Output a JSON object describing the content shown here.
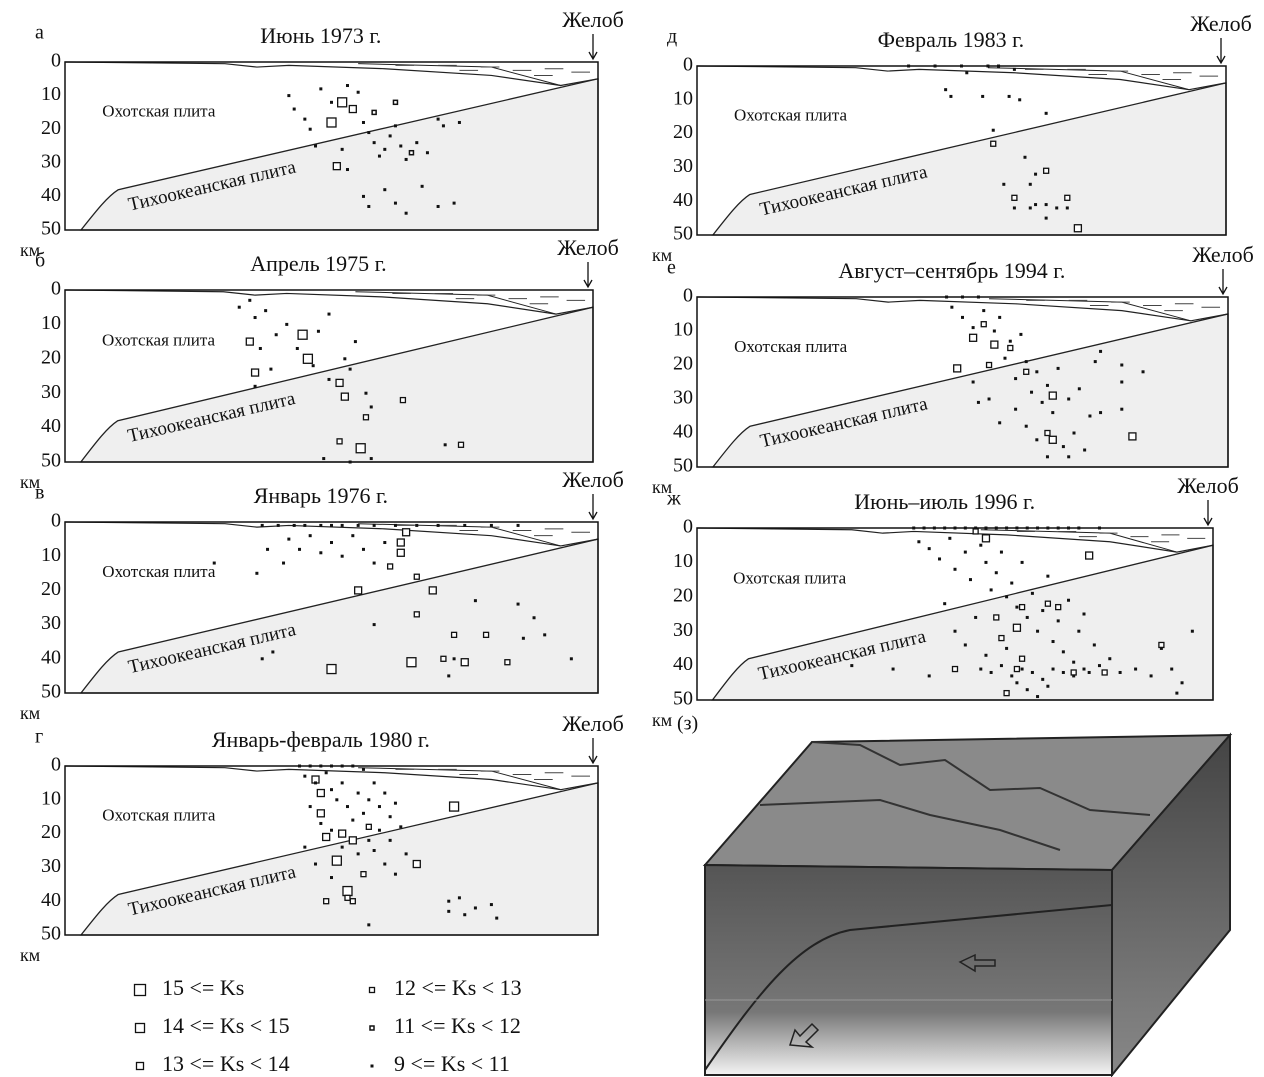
{
  "chart_data": [
    {
      "type": "scatter",
      "label": "а",
      "title": "Июнь 1973 г.",
      "annotation": "Желоб",
      "upper_plate": "Охотская плита",
      "lower_plate": "Тихоокеанская плита",
      "y_unit": "км",
      "xlim": [
        0,
        100
      ],
      "ylim": [
        0,
        50
      ],
      "y_inverted": true,
      "yticks": [
        0,
        10,
        20,
        30,
        40,
        50
      ],
      "series": [
        {
          "x": [],
          "y": []
        },
        {
          "x": [
            52,
            50
          ],
          "y": [
            12,
            18
          ]
        },
        {
          "x": [
            54,
            51
          ],
          "y": [
            14,
            31
          ]
        },
        {
          "x": [],
          "y": []
        },
        {
          "x": [
            58,
            62,
            65
          ],
          "y": [
            15,
            12,
            27
          ]
        },
        {
          "x": [
            42,
            43,
            45,
            46,
            48,
            50,
            53,
            55,
            56,
            57,
            58,
            60,
            61,
            62,
            63,
            59,
            64,
            66,
            68,
            70,
            71,
            47,
            52,
            53,
            56,
            57,
            60,
            62,
            64,
            67,
            70,
            73,
            74
          ],
          "y": [
            10,
            14,
            17,
            20,
            8,
            12,
            7,
            9,
            18,
            21,
            24,
            26,
            22,
            19,
            25,
            28,
            29,
            24,
            27,
            17,
            19,
            25,
            26,
            32,
            40,
            43,
            38,
            42,
            45,
            37,
            43,
            42,
            18
          ]
        }
      ]
    },
    {
      "type": "scatter",
      "label": "б",
      "title": "Апрель 1975 г.",
      "annotation": "Желоб",
      "upper_plate": "Охотская плита",
      "lower_plate": "Тихоокеанская плита",
      "y_unit": "км",
      "xlim": [
        0,
        100
      ],
      "ylim": [
        0,
        50
      ],
      "y_inverted": true,
      "yticks": [
        0,
        10,
        20,
        30,
        40,
        50
      ],
      "series": [
        {
          "x": [],
          "y": []
        },
        {
          "x": [
            45,
            46,
            56
          ],
          "y": [
            13,
            20,
            46
          ]
        },
        {
          "x": [
            35,
            52,
            53,
            36
          ],
          "y": [
            15,
            27,
            31,
            24
          ]
        },
        {
          "x": [
            52,
            57,
            64,
            75
          ],
          "y": [
            44,
            37,
            32,
            45
          ]
        },
        {
          "x": [],
          "y": []
        },
        {
          "x": [
            33,
            35,
            36,
            38,
            37,
            40,
            42,
            44,
            47,
            48,
            50,
            50,
            53,
            54,
            55,
            57,
            58,
            36,
            39,
            54,
            72,
            49,
            58
          ],
          "y": [
            5,
            3,
            8,
            6,
            17,
            13,
            10,
            17,
            22,
            12,
            7,
            26,
            20,
            23,
            15,
            30,
            34,
            28,
            23,
            50,
            45,
            49,
            49
          ]
        }
      ]
    },
    {
      "type": "scatter",
      "label": "в",
      "title": "Январь 1976 г.",
      "annotation": "Желоб",
      "upper_plate": "Охотская плита",
      "lower_plate": "Тихоокеанская плита",
      "y_unit": "км",
      "xlim": [
        0,
        100
      ],
      "ylim": [
        0,
        50
      ],
      "y_inverted": true,
      "yticks": [
        0,
        10,
        20,
        30,
        40,
        50
      ],
      "series": [
        {
          "x": [],
          "y": []
        },
        {
          "x": [
            50,
            65
          ],
          "y": [
            43,
            41
          ]
        },
        {
          "x": [
            63,
            64,
            63,
            55,
            69,
            75
          ],
          "y": [
            6,
            3,
            9,
            20,
            20,
            41
          ]
        },
        {
          "x": [
            61,
            66,
            73,
            79,
            83,
            66,
            71
          ],
          "y": [
            13,
            16,
            33,
            33,
            41,
            27,
            40
          ]
        },
        {
          "x": [],
          "y": []
        },
        {
          "x": [
            37,
            40,
            43,
            45,
            48,
            50,
            52,
            55,
            58,
            62,
            66,
            70,
            75,
            80,
            85,
            42,
            44,
            46,
            48,
            50,
            52,
            54,
            56,
            58,
            60,
            38,
            41,
            36,
            28,
            37,
            39,
            73,
            72,
            77,
            86,
            85,
            88,
            90,
            95,
            58
          ],
          "y": [
            1,
            1,
            1,
            1,
            1,
            1,
            1,
            1,
            1,
            1,
            1,
            1,
            1,
            1,
            1,
            5,
            8,
            4,
            9,
            6,
            10,
            4,
            8,
            12,
            6,
            8,
            12,
            15,
            12,
            40,
            38,
            40,
            45,
            23,
            34,
            24,
            28,
            33,
            40,
            30
          ]
        }
      ]
    },
    {
      "type": "scatter",
      "label": "г",
      "title": "Январь-февраль 1980 г.",
      "annotation": "Желоб",
      "upper_plate": "Охотская плита",
      "lower_plate": "Тихоокеанская плита",
      "y_unit": "км",
      "xlim": [
        0,
        100
      ],
      "ylim": [
        0,
        50
      ],
      "y_inverted": true,
      "yticks": [
        0,
        10,
        20,
        30,
        40,
        50
      ],
      "series": [
        {
          "x": [],
          "y": []
        },
        {
          "x": [
            53,
            51,
            73
          ],
          "y": [
            37,
            28,
            12
          ]
        },
        {
          "x": [
            47,
            48,
            52,
            54,
            49,
            48,
            66
          ],
          "y": [
            4,
            14,
            20,
            22,
            21,
            8,
            29
          ]
        },
        {
          "x": [
            49,
            54,
            56,
            53,
            57
          ],
          "y": [
            40,
            40,
            32,
            39,
            18
          ]
        },
        {
          "x": [],
          "y": []
        },
        {
          "x": [
            44,
            46,
            48,
            50,
            52,
            54,
            56,
            45,
            47,
            49,
            50,
            51,
            52,
            53,
            55,
            56,
            57,
            58,
            59,
            60,
            61,
            62,
            63,
            48,
            50,
            52,
            54,
            55,
            57,
            58,
            59,
            60,
            61,
            62,
            64,
            46,
            45,
            47,
            50,
            57,
            72,
            74,
            75,
            77,
            80,
            81,
            72
          ],
          "y": [
            0,
            0,
            0,
            0,
            0,
            0,
            1,
            3,
            5,
            2,
            7,
            10,
            5,
            12,
            8,
            14,
            10,
            5,
            12,
            8,
            15,
            11,
            18,
            17,
            19,
            24,
            16,
            26,
            22,
            25,
            19,
            29,
            22,
            32,
            26,
            12,
            24,
            29,
            33,
            47,
            40,
            39,
            44,
            42,
            41,
            45,
            43
          ]
        }
      ]
    },
    {
      "type": "scatter",
      "label": "д",
      "title": "Февраль 1983 г.",
      "annotation": "Желоб",
      "upper_plate": "Охотская плита",
      "lower_plate": "Тихоокеанская плита",
      "y_unit": "км",
      "xlim": [
        0,
        100
      ],
      "ylim": [
        0,
        50
      ],
      "y_inverted": true,
      "yticks": [
        0,
        10,
        20,
        30,
        40,
        50
      ],
      "series": [
        {
          "x": [],
          "y": []
        },
        {
          "x": [],
          "y": []
        },
        {
          "x": [
            72
          ],
          "y": [
            48
          ]
        },
        {
          "x": [
            66,
            60,
            70,
            56
          ],
          "y": [
            31,
            39,
            39,
            23
          ]
        },
        {
          "x": [],
          "y": []
        },
        {
          "x": [
            40,
            45,
            50,
            55,
            57,
            60,
            47,
            48,
            51,
            54,
            59,
            61,
            66,
            64,
            63,
            58,
            60,
            63,
            64,
            66,
            68,
            70,
            66,
            56,
            62
          ],
          "y": [
            0,
            0,
            0,
            0,
            0,
            1,
            7,
            9,
            2,
            9,
            9,
            10,
            14,
            32,
            35,
            35,
            42,
            42,
            41,
            41,
            42,
            42,
            45,
            19,
            27
          ]
        }
      ]
    },
    {
      "type": "scatter",
      "label": "е",
      "title": "Август–сентябрь 1994 г.",
      "annotation": "Желоб",
      "upper_plate": "Охотская плита",
      "lower_plate": "Тихоокеанская плита",
      "y_unit": "км",
      "xlim": [
        0,
        100
      ],
      "ylim": [
        0,
        50
      ],
      "y_inverted": true,
      "yticks": [
        0,
        10,
        20,
        30,
        40,
        50
      ],
      "series": [
        {
          "x": [],
          "y": []
        },
        {
          "x": [],
          "y": []
        },
        {
          "x": [
            49,
            52,
            56,
            67,
            67,
            82
          ],
          "y": [
            21,
            12,
            14,
            29,
            42,
            41
          ]
        },
        {
          "x": [
            55,
            59,
            62,
            54,
            66
          ],
          "y": [
            20,
            15,
            22,
            8,
            40
          ]
        },
        {
          "x": [],
          "y": []
        },
        {
          "x": [
            47,
            50,
            53,
            48,
            50,
            52,
            54,
            56,
            57,
            58,
            59,
            60,
            61,
            62,
            63,
            64,
            65,
            66,
            67,
            68,
            70,
            72,
            74,
            75,
            76,
            69,
            70,
            71,
            73,
            60,
            55,
            57,
            62,
            52,
            53,
            80,
            80,
            80,
            76,
            84,
            64,
            66
          ],
          "y": [
            0,
            0,
            0,
            3,
            6,
            9,
            4,
            10,
            6,
            18,
            13,
            24,
            11,
            19,
            28,
            22,
            31,
            26,
            34,
            21,
            30,
            27,
            35,
            19,
            34,
            44,
            47,
            40,
            45,
            33,
            30,
            37,
            38,
            25,
            31,
            20,
            25,
            33,
            16,
            22,
            42,
            47
          ]
        }
      ]
    },
    {
      "type": "scatter",
      "label": "ж",
      "title": "Июнь–июль 1996 г.",
      "annotation": "Желоб",
      "upper_plate": "Охотская плита",
      "lower_plate": "Тихоокеанская плита",
      "y_unit": "км",
      "xlim": [
        0,
        100
      ],
      "ylim": [
        0,
        50
      ],
      "y_inverted": true,
      "yticks": [
        0,
        10,
        20,
        30,
        40,
        50
      ],
      "series": [
        {
          "x": [],
          "y": []
        },
        {
          "x": [],
          "y": []
        },
        {
          "x": [
            56,
            76,
            62
          ],
          "y": [
            3,
            8,
            29
          ]
        },
        {
          "x": [
            54,
            50,
            63,
            68,
            70,
            58,
            59,
            73,
            79,
            90,
            63,
            62,
            60
          ],
          "y": [
            1,
            41,
            23,
            22,
            23,
            26,
            32,
            42,
            42,
            34,
            38,
            41,
            48
          ]
        },
        {
          "x": [],
          "y": []
        },
        {
          "x": [
            42,
            44,
            46,
            48,
            50,
            52,
            54,
            56,
            58,
            60,
            62,
            64,
            66,
            68,
            70,
            72,
            74,
            78,
            43,
            45,
            47,
            49,
            50,
            52,
            53,
            55,
            56,
            57,
            58,
            59,
            60,
            61,
            62,
            63,
            64,
            65,
            66,
            67,
            68,
            69,
            70,
            71,
            72,
            73,
            74,
            75,
            76,
            77,
            78,
            80,
            82,
            85,
            88,
            90,
            92,
            55,
            57,
            59,
            61,
            63,
            65,
            67,
            69,
            71,
            73,
            75,
            50,
            48,
            52,
            54,
            56,
            60,
            62,
            64,
            66,
            68,
            30,
            38,
            45,
            93,
            94,
            96
          ],
          "y": [
            0,
            0,
            0,
            0,
            0,
            0,
            0,
            0,
            0,
            0,
            0,
            0,
            0,
            0,
            0,
            0,
            0,
            0,
            4,
            6,
            9,
            3,
            12,
            7,
            15,
            5,
            10,
            18,
            13,
            7,
            20,
            16,
            23,
            10,
            26,
            19,
            30,
            24,
            14,
            33,
            27,
            36,
            21,
            39,
            30,
            25,
            42,
            34,
            40,
            38,
            42,
            41,
            43,
            35,
            41,
            41,
            42,
            40,
            43,
            41,
            42,
            44,
            41,
            42,
            43,
            41,
            30,
            22,
            34,
            26,
            37,
            35,
            45,
            47,
            49,
            46,
            40,
            41,
            43,
            48,
            45,
            30
          ]
        }
      ]
    }
  ],
  "legend": [
    "15 <= Ks",
    "14 <= Ks < 15",
    "13 <= Ks < 14",
    "12 <= Ks < 13",
    "11 <= Ks < 12",
    "9 <= Ks < 11"
  ],
  "block_label": "(з)"
}
